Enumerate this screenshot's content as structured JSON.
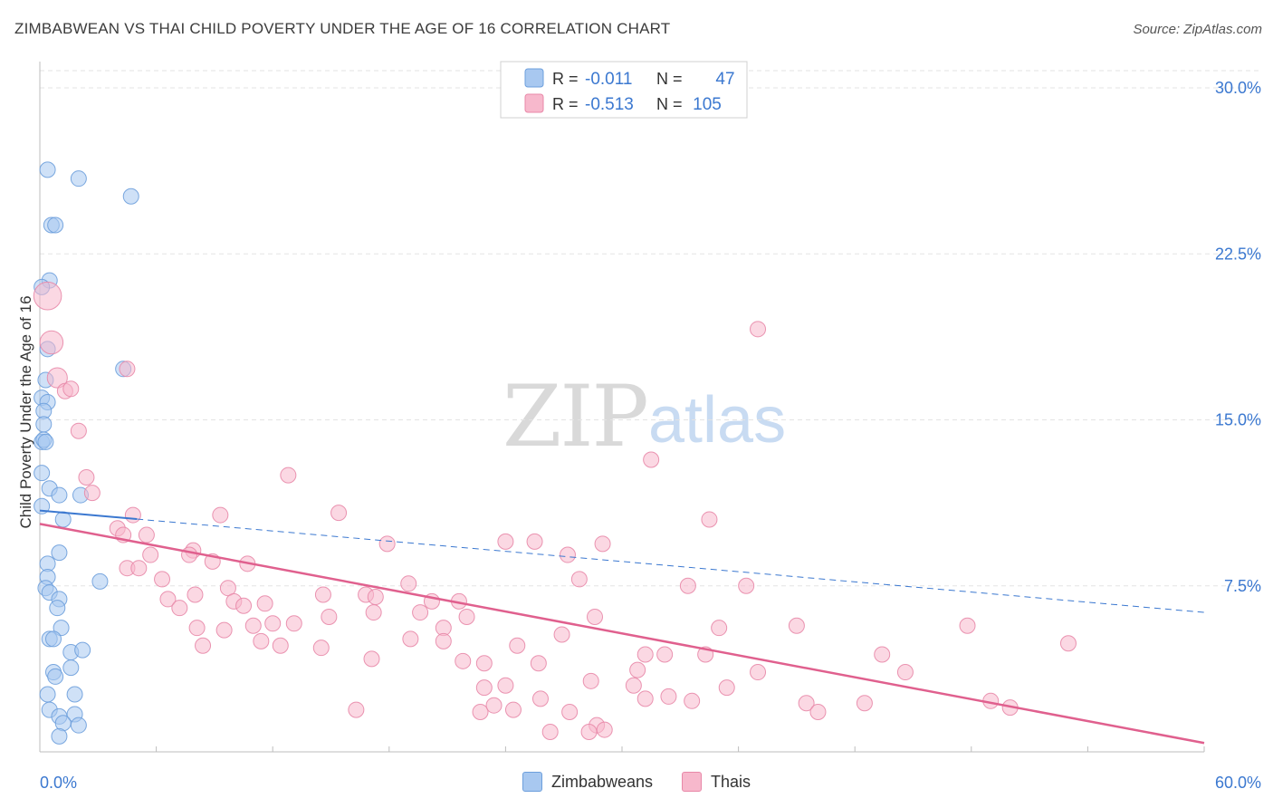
{
  "header": {
    "title": "ZIMBABWEAN VS THAI CHILD POVERTY UNDER THE AGE OF 16 CORRELATION CHART",
    "source": "Source: ZipAtlas.com"
  },
  "watermark": {
    "zip": "ZIP",
    "atlas": "atlas"
  },
  "colors": {
    "zimbabwe_fill": "#a8c8f0",
    "zimbabwe_stroke": "#6d9fdc",
    "zimbabwe_line": "#3b78d0",
    "thai_fill": "#f7b8cc",
    "thai_stroke": "#e888a8",
    "thai_line": "#e0608e",
    "axis_text": "#3b78d0"
  },
  "legend_box": {
    "rows": [
      {
        "r_label": "R =",
        "r_value": "-0.011",
        "n_label": "N =",
        "n_value": "47",
        "series": "zimbabwe"
      },
      {
        "r_label": "R =",
        "r_value": "-0.513",
        "n_label": "N =",
        "n_value": "105",
        "series": "thai"
      }
    ]
  },
  "legend_bottom": [
    {
      "label": "Zimbabweans",
      "series": "zimbabwe"
    },
    {
      "label": "Thais",
      "series": "thai"
    }
  ],
  "chart_data": {
    "type": "scatter",
    "title": "ZIMBABWEAN VS THAI CHILD POVERTY UNDER THE AGE OF 16 CORRELATION CHART",
    "xlabel": "",
    "ylabel": "Child Poverty Under the Age of 16",
    "xlim": [
      0,
      60
    ],
    "ylim": [
      0,
      30
    ],
    "x_tick_labels": {
      "left": "0.0%",
      "right": "60.0%"
    },
    "y_ticks": [
      {
        "value": 7.5,
        "label": "7.5%"
      },
      {
        "value": 15.0,
        "label": "15.0%"
      },
      {
        "value": 22.5,
        "label": "22.5%"
      },
      {
        "value": 30.0,
        "label": "30.0%"
      }
    ],
    "grid": true,
    "series": [
      {
        "name": "Zimbabweans",
        "key": "zimbabwe",
        "r": -0.011,
        "n": 47,
        "trend": {
          "x0": 0,
          "y0": 10.9,
          "x_solid_end": 5,
          "x1": 60,
          "y1": 6.3
        },
        "points": [
          {
            "x": 0.4,
            "y": 26.3
          },
          {
            "x": 2.0,
            "y": 25.9
          },
          {
            "x": 4.7,
            "y": 25.1
          },
          {
            "x": 0.6,
            "y": 23.8
          },
          {
            "x": 0.8,
            "y": 23.8
          },
          {
            "x": 0.5,
            "y": 21.3
          },
          {
            "x": 0.1,
            "y": 21.0
          },
          {
            "x": 0.4,
            "y": 18.2
          },
          {
            "x": 4.3,
            "y": 17.3
          },
          {
            "x": 0.3,
            "y": 16.8
          },
          {
            "x": 0.1,
            "y": 16.0
          },
          {
            "x": 0.4,
            "y": 15.8
          },
          {
            "x": 0.2,
            "y": 15.4
          },
          {
            "x": 0.2,
            "y": 14.8
          },
          {
            "x": 0.1,
            "y": 14.0
          },
          {
            "x": 0.2,
            "y": 14.1
          },
          {
            "x": 0.1,
            "y": 12.6
          },
          {
            "x": 0.5,
            "y": 11.9
          },
          {
            "x": 1.0,
            "y": 11.6
          },
          {
            "x": 2.1,
            "y": 11.6
          },
          {
            "x": 0.1,
            "y": 11.1
          },
          {
            "x": 1.2,
            "y": 10.5
          },
          {
            "x": 1.0,
            "y": 9.0
          },
          {
            "x": 0.4,
            "y": 8.5
          },
          {
            "x": 0.4,
            "y": 7.9
          },
          {
            "x": 3.1,
            "y": 7.7
          },
          {
            "x": 0.3,
            "y": 7.4
          },
          {
            "x": 0.5,
            "y": 7.2
          },
          {
            "x": 1.0,
            "y": 6.9
          },
          {
            "x": 0.9,
            "y": 6.5
          },
          {
            "x": 1.1,
            "y": 5.6
          },
          {
            "x": 0.5,
            "y": 5.1
          },
          {
            "x": 0.7,
            "y": 5.1
          },
          {
            "x": 1.6,
            "y": 4.5
          },
          {
            "x": 2.2,
            "y": 4.6
          },
          {
            "x": 1.6,
            "y": 3.8
          },
          {
            "x": 0.7,
            "y": 3.6
          },
          {
            "x": 0.8,
            "y": 3.4
          },
          {
            "x": 0.4,
            "y": 2.6
          },
          {
            "x": 1.8,
            "y": 2.6
          },
          {
            "x": 0.5,
            "y": 1.9
          },
          {
            "x": 1.0,
            "y": 1.6
          },
          {
            "x": 1.8,
            "y": 1.7
          },
          {
            "x": 1.2,
            "y": 1.3
          },
          {
            "x": 2.0,
            "y": 1.2
          },
          {
            "x": 1.0,
            "y": 0.7
          },
          {
            "x": 0.3,
            "y": 14.0
          }
        ]
      },
      {
        "name": "Thais",
        "key": "thai",
        "r": -0.513,
        "n": 105,
        "trend": {
          "x0": 0,
          "y0": 10.3,
          "x1": 60,
          "y1": 0.4
        },
        "points": [
          {
            "x": 0.4,
            "y": 20.6,
            "s": 1.8
          },
          {
            "x": 0.6,
            "y": 18.5,
            "s": 1.5
          },
          {
            "x": 0.9,
            "y": 16.9,
            "s": 1.3
          },
          {
            "x": 1.3,
            "y": 16.3
          },
          {
            "x": 1.6,
            "y": 16.4
          },
          {
            "x": 4.5,
            "y": 17.3
          },
          {
            "x": 2.0,
            "y": 14.5
          },
          {
            "x": 2.4,
            "y": 12.4
          },
          {
            "x": 2.7,
            "y": 11.7
          },
          {
            "x": 37.0,
            "y": 19.1
          },
          {
            "x": 31.5,
            "y": 13.2
          },
          {
            "x": 12.8,
            "y": 12.5
          },
          {
            "x": 15.4,
            "y": 10.8
          },
          {
            "x": 9.3,
            "y": 10.7
          },
          {
            "x": 4.8,
            "y": 10.7
          },
          {
            "x": 34.5,
            "y": 10.5
          },
          {
            "x": 4.0,
            "y": 10.1
          },
          {
            "x": 4.3,
            "y": 9.8
          },
          {
            "x": 5.5,
            "y": 9.8
          },
          {
            "x": 17.9,
            "y": 9.4
          },
          {
            "x": 24.0,
            "y": 9.5
          },
          {
            "x": 25.5,
            "y": 9.5
          },
          {
            "x": 29.0,
            "y": 9.4
          },
          {
            "x": 7.9,
            "y": 9.1
          },
          {
            "x": 5.7,
            "y": 8.9
          },
          {
            "x": 7.7,
            "y": 8.9
          },
          {
            "x": 8.9,
            "y": 8.6
          },
          {
            "x": 10.7,
            "y": 8.5
          },
          {
            "x": 27.2,
            "y": 8.9
          },
          {
            "x": 4.5,
            "y": 8.3
          },
          {
            "x": 5.1,
            "y": 8.3
          },
          {
            "x": 6.3,
            "y": 7.8
          },
          {
            "x": 19.0,
            "y": 7.6
          },
          {
            "x": 27.8,
            "y": 7.8
          },
          {
            "x": 33.4,
            "y": 7.5
          },
          {
            "x": 36.4,
            "y": 7.5
          },
          {
            "x": 9.7,
            "y": 7.4
          },
          {
            "x": 14.6,
            "y": 7.1
          },
          {
            "x": 16.8,
            "y": 7.1
          },
          {
            "x": 17.3,
            "y": 7.0
          },
          {
            "x": 6.6,
            "y": 6.9
          },
          {
            "x": 8.0,
            "y": 7.1
          },
          {
            "x": 10.0,
            "y": 6.8
          },
          {
            "x": 10.5,
            "y": 6.6
          },
          {
            "x": 11.6,
            "y": 6.7
          },
          {
            "x": 20.2,
            "y": 6.8
          },
          {
            "x": 21.6,
            "y": 6.8
          },
          {
            "x": 7.2,
            "y": 6.5
          },
          {
            "x": 17.2,
            "y": 6.3
          },
          {
            "x": 14.9,
            "y": 6.1
          },
          {
            "x": 19.6,
            "y": 6.3
          },
          {
            "x": 22.0,
            "y": 6.1
          },
          {
            "x": 28.6,
            "y": 6.1
          },
          {
            "x": 12.0,
            "y": 5.8
          },
          {
            "x": 13.1,
            "y": 5.8
          },
          {
            "x": 11.0,
            "y": 5.7
          },
          {
            "x": 8.1,
            "y": 5.6
          },
          {
            "x": 9.5,
            "y": 5.5
          },
          {
            "x": 20.8,
            "y": 5.6
          },
          {
            "x": 35.0,
            "y": 5.6
          },
          {
            "x": 39.0,
            "y": 5.7
          },
          {
            "x": 47.8,
            "y": 5.7
          },
          {
            "x": 26.9,
            "y": 5.3
          },
          {
            "x": 19.1,
            "y": 5.1
          },
          {
            "x": 20.8,
            "y": 5.0
          },
          {
            "x": 11.4,
            "y": 5.0
          },
          {
            "x": 8.4,
            "y": 4.8
          },
          {
            "x": 12.4,
            "y": 4.8
          },
          {
            "x": 14.5,
            "y": 4.7
          },
          {
            "x": 24.6,
            "y": 4.8
          },
          {
            "x": 31.2,
            "y": 4.4
          },
          {
            "x": 32.2,
            "y": 4.4
          },
          {
            "x": 34.3,
            "y": 4.4
          },
          {
            "x": 43.4,
            "y": 4.4
          },
          {
            "x": 17.1,
            "y": 4.2
          },
          {
            "x": 21.8,
            "y": 4.1
          },
          {
            "x": 22.9,
            "y": 4.0
          },
          {
            "x": 25.7,
            "y": 4.0
          },
          {
            "x": 30.8,
            "y": 3.7
          },
          {
            "x": 37.0,
            "y": 3.6
          },
          {
            "x": 44.6,
            "y": 3.6
          },
          {
            "x": 53.0,
            "y": 4.9
          },
          {
            "x": 28.4,
            "y": 3.2
          },
          {
            "x": 30.6,
            "y": 3.0
          },
          {
            "x": 24.0,
            "y": 3.0
          },
          {
            "x": 22.9,
            "y": 2.9
          },
          {
            "x": 35.4,
            "y": 2.9
          },
          {
            "x": 31.2,
            "y": 2.4
          },
          {
            "x": 32.4,
            "y": 2.5
          },
          {
            "x": 33.6,
            "y": 2.3
          },
          {
            "x": 39.5,
            "y": 2.2
          },
          {
            "x": 42.5,
            "y": 2.2
          },
          {
            "x": 49.0,
            "y": 2.3
          },
          {
            "x": 50.0,
            "y": 2.0
          },
          {
            "x": 40.1,
            "y": 1.8
          },
          {
            "x": 22.7,
            "y": 1.8
          },
          {
            "x": 16.3,
            "y": 1.9
          },
          {
            "x": 24.4,
            "y": 1.9
          },
          {
            "x": 27.3,
            "y": 1.8
          },
          {
            "x": 23.4,
            "y": 2.1
          },
          {
            "x": 28.7,
            "y": 1.2
          },
          {
            "x": 28.3,
            "y": 0.9
          },
          {
            "x": 29.1,
            "y": 1.0
          },
          {
            "x": 25.8,
            "y": 2.4
          },
          {
            "x": 26.3,
            "y": 0.9
          }
        ]
      }
    ]
  }
}
